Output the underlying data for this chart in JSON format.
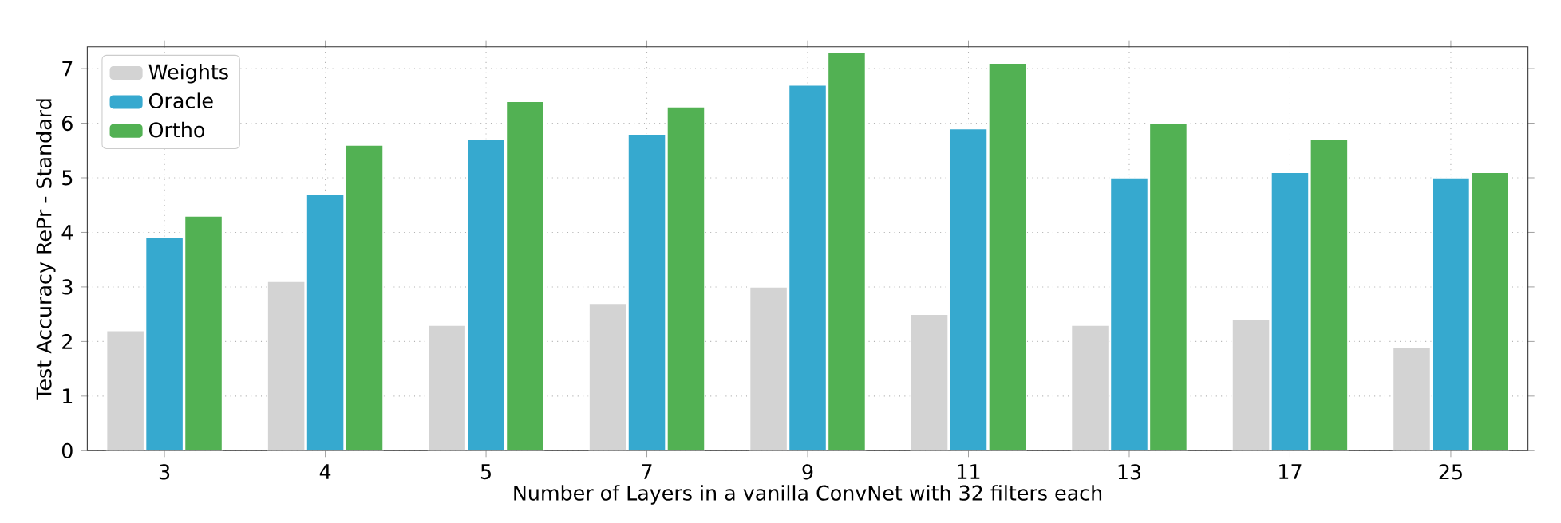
{
  "chart_data": {
    "type": "bar",
    "xlabel": "Number of Layers in a vanilla ConvNet with 32 filters each",
    "ylabel": "Test Accuracy RePr - Standard",
    "categories": [
      "3",
      "4",
      "5",
      "7",
      "9",
      "11",
      "13",
      "17",
      "25"
    ],
    "series": [
      {
        "name": "Weights",
        "color": "#d3d3d3",
        "values": [
          2.2,
          3.1,
          2.3,
          2.7,
          3.0,
          2.5,
          2.3,
          2.4,
          1.9
        ]
      },
      {
        "name": "Oracle",
        "color": "#36a9cf",
        "values": [
          3.9,
          4.7,
          5.7,
          5.8,
          6.7,
          5.9,
          5.0,
          5.1,
          5.0
        ]
      },
      {
        "name": "Ortho",
        "color": "#52b153",
        "values": [
          4.3,
          5.6,
          6.4,
          6.3,
          7.3,
          7.1,
          6.0,
          5.7,
          5.1
        ]
      }
    ],
    "ylim": [
      0,
      7.4
    ],
    "yticks": [
      0,
      1,
      2,
      3,
      4,
      5,
      6,
      7
    ],
    "grid": true,
    "legend": "top left"
  }
}
